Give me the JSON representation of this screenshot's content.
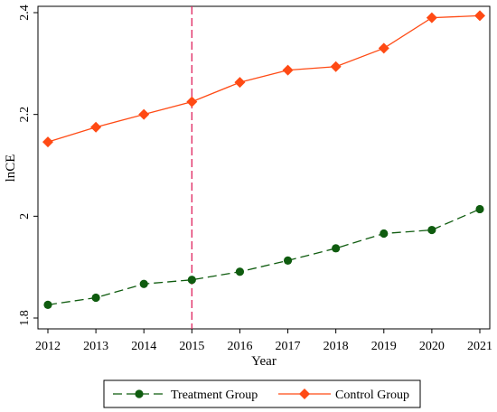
{
  "chart_data": {
    "type": "line",
    "xlabel": "Year",
    "ylabel": "lnCE",
    "x": [
      2012,
      2013,
      2014,
      2015,
      2016,
      2017,
      2018,
      2019,
      2020,
      2021
    ],
    "x_tick_labels": [
      "2012",
      "2013",
      "2014",
      "2015",
      "2016",
      "2017",
      "2018",
      "2019",
      "2020",
      "2021"
    ],
    "y_ticks": [
      1.8,
      2.0,
      2.2,
      2.4
    ],
    "y_tick_labels": [
      "1.8",
      "2",
      "2.2",
      "2.4"
    ],
    "xlim": [
      2012,
      2021
    ],
    "ylim": [
      1.8,
      2.4
    ],
    "grid": false,
    "legend_position": "bottom",
    "reference_line": {
      "x": 2015,
      "color": "#e0245e",
      "style": "dashed"
    },
    "series": [
      {
        "name": "Treatment Group",
        "color": "#0f5c0f",
        "marker": "circle",
        "line_style": "dashed",
        "values": [
          1.826,
          1.84,
          1.867,
          1.875,
          1.891,
          1.913,
          1.937,
          1.966,
          1.973,
          2.014
        ]
      },
      {
        "name": "Control Group",
        "color": "#ff4a14",
        "marker": "diamond",
        "line_style": "solid",
        "values": [
          2.146,
          2.175,
          2.2,
          2.225,
          2.263,
          2.287,
          2.294,
          2.33,
          2.39,
          2.394
        ]
      }
    ]
  }
}
